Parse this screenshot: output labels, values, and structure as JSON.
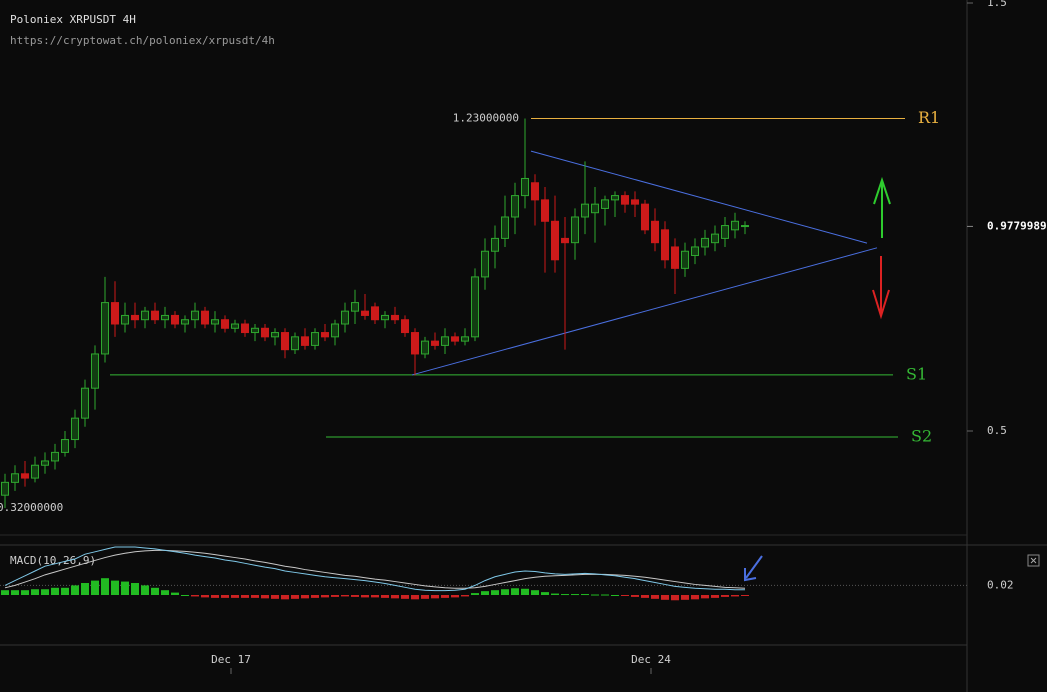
{
  "chart_data": {
    "type": "candlestick",
    "title": "Poloniex XRPUSDT 4H",
    "subtitle": "https://cryptowat.ch/poloniex/xrpusdt/4h",
    "x": [
      0,
      1,
      2,
      3,
      4,
      5,
      6,
      7,
      8,
      9,
      10,
      11,
      12,
      13,
      14,
      15,
      16,
      17,
      18,
      19,
      20,
      21,
      22,
      23,
      24,
      25,
      26,
      27,
      28,
      29,
      30,
      31,
      32,
      33,
      34,
      35,
      36,
      37,
      38,
      39,
      40,
      41,
      42,
      43,
      44,
      45,
      46,
      47,
      48,
      49,
      50,
      51,
      52,
      53,
      54,
      55,
      56,
      57,
      58,
      59,
      60,
      61,
      62,
      63,
      64,
      65,
      66,
      67,
      68,
      69,
      70,
      71,
      72,
      73,
      74
    ],
    "open": [
      0.35,
      0.38,
      0.4,
      0.39,
      0.42,
      0.43,
      0.45,
      0.48,
      0.53,
      0.6,
      0.68,
      0.8,
      0.75,
      0.77,
      0.76,
      0.78,
      0.76,
      0.77,
      0.75,
      0.76,
      0.78,
      0.75,
      0.76,
      0.74,
      0.75,
      0.73,
      0.74,
      0.72,
      0.73,
      0.69,
      0.72,
      0.7,
      0.73,
      0.72,
      0.75,
      0.78,
      0.78,
      0.79,
      0.76,
      0.77,
      0.76,
      0.73,
      0.68,
      0.71,
      0.7,
      0.72,
      0.71,
      0.72,
      0.86,
      0.92,
      0.95,
      1.0,
      1.05,
      1.08,
      1.04,
      0.99,
      0.95,
      0.94,
      1.0,
      1.01,
      1.02,
      1.04,
      1.05,
      1.04,
      1.03,
      0.99,
      0.97,
      0.93,
      0.88,
      0.91,
      0.93,
      0.94,
      0.95,
      0.97,
      0.98
    ],
    "high": [
      0.4,
      0.42,
      0.43,
      0.44,
      0.45,
      0.47,
      0.5,
      0.55,
      0.62,
      0.7,
      0.86,
      0.85,
      0.8,
      0.8,
      0.79,
      0.8,
      0.79,
      0.78,
      0.77,
      0.8,
      0.79,
      0.78,
      0.77,
      0.76,
      0.76,
      0.75,
      0.75,
      0.74,
      0.74,
      0.73,
      0.74,
      0.74,
      0.75,
      0.76,
      0.8,
      0.83,
      0.82,
      0.8,
      0.78,
      0.79,
      0.77,
      0.74,
      0.72,
      0.73,
      0.74,
      0.73,
      0.74,
      0.88,
      0.95,
      0.98,
      1.05,
      1.08,
      1.23,
      1.1,
      1.07,
      1.05,
      1.0,
      1.02,
      1.13,
      1.07,
      1.05,
      1.06,
      1.06,
      1.06,
      1.04,
      1.02,
      0.99,
      0.95,
      0.94,
      0.95,
      0.97,
      0.98,
      1.0,
      1.01,
      0.99
    ],
    "low": [
      0.32,
      0.36,
      0.37,
      0.38,
      0.4,
      0.41,
      0.44,
      0.46,
      0.51,
      0.55,
      0.66,
      0.72,
      0.73,
      0.74,
      0.74,
      0.75,
      0.74,
      0.74,
      0.73,
      0.74,
      0.74,
      0.73,
      0.73,
      0.73,
      0.72,
      0.71,
      0.71,
      0.7,
      0.67,
      0.68,
      0.69,
      0.69,
      0.71,
      0.7,
      0.73,
      0.75,
      0.76,
      0.75,
      0.74,
      0.75,
      0.72,
      0.63,
      0.67,
      0.69,
      0.68,
      0.7,
      0.7,
      0.71,
      0.83,
      0.88,
      0.93,
      0.96,
      1.02,
      0.98,
      0.87,
      0.87,
      0.69,
      0.9,
      0.96,
      0.94,
      0.98,
      1.0,
      1.01,
      1.0,
      0.96,
      0.92,
      0.88,
      0.82,
      0.86,
      0.89,
      0.91,
      0.92,
      0.93,
      0.95,
      0.96
    ],
    "close": [
      0.38,
      0.4,
      0.39,
      0.42,
      0.43,
      0.45,
      0.48,
      0.53,
      0.6,
      0.68,
      0.8,
      0.75,
      0.77,
      0.76,
      0.78,
      0.76,
      0.77,
      0.75,
      0.76,
      0.78,
      0.75,
      0.76,
      0.74,
      0.75,
      0.73,
      0.74,
      0.72,
      0.73,
      0.69,
      0.72,
      0.7,
      0.73,
      0.72,
      0.75,
      0.78,
      0.8,
      0.77,
      0.76,
      0.77,
      0.76,
      0.73,
      0.68,
      0.71,
      0.7,
      0.72,
      0.71,
      0.72,
      0.86,
      0.92,
      0.95,
      1.0,
      1.05,
      1.09,
      1.04,
      0.99,
      0.9,
      0.94,
      1.0,
      1.03,
      1.03,
      1.04,
      1.05,
      1.03,
      1.03,
      0.97,
      0.94,
      0.9,
      0.88,
      0.92,
      0.93,
      0.95,
      0.96,
      0.98,
      0.99,
      0.98
    ],
    "up_color": "#2fa82f",
    "down_color": "#cc1a1a",
    "xlim": [
      -0.5,
      96.2
    ],
    "xticks": [
      {
        "value": 22.6,
        "label": "Dec 17"
      },
      {
        "value": 64.6,
        "label": "Dec 24"
      }
    ],
    "ylim": [
      0.257,
      1.507
    ],
    "yticks": [
      1.5,
      0.5
    ],
    "last_price": 0.9779989,
    "annotations": [
      {
        "value": 1.23,
        "label": "1.23000000",
        "x": 52
      },
      {
        "value": 0.32,
        "label": "0.32000000",
        "x": 0
      }
    ],
    "levels": [
      {
        "name": "R1",
        "value": 1.23,
        "x": [
          52.6,
          90.0
        ],
        "color": "#e8b040"
      },
      {
        "name": "S1",
        "value": 0.631,
        "x": [
          10.5,
          88.8
        ],
        "color": "#35b835"
      },
      {
        "name": "S2",
        "value": 0.486,
        "x": [
          32.1,
          89.3
        ],
        "color": "#35b835"
      }
    ],
    "trendlines": [
      {
        "x": [
          52.6,
          86.2
        ],
        "y": [
          1.154,
          0.939
        ]
      },
      {
        "x": [
          40.7,
          87.2
        ],
        "y": [
          0.631,
          0.928
        ]
      }
    ],
    "trendline_color": "#4a6fe0",
    "indicator": {
      "title": "MACD(10,26,9)",
      "ylim": [
        -0.1,
        0.1
      ],
      "yticks": [
        0.02
      ],
      "histogram": [
        0.01,
        0.01,
        0.01,
        0.012,
        0.012,
        0.015,
        0.015,
        0.02,
        0.025,
        0.03,
        0.035,
        0.03,
        0.028,
        0.025,
        0.02,
        0.015,
        0.01,
        0.005,
        0,
        -0.003,
        -0.005,
        -0.006,
        -0.006,
        -0.006,
        -0.006,
        -0.006,
        -0.007,
        -0.008,
        -0.009,
        -0.008,
        -0.007,
        -0.006,
        -0.005,
        -0.004,
        -0.003,
        -0.004,
        -0.005,
        -0.005,
        -0.006,
        -0.007,
        -0.008,
        -0.009,
        -0.008,
        -0.007,
        -0.006,
        -0.005,
        -0.003,
        0.004,
        0.008,
        0.01,
        0.012,
        0.014,
        0.013,
        0.01,
        0.006,
        0.003,
        0.002,
        0.002,
        0.002,
        0.001,
        0.001,
        0,
        -0.002,
        -0.004,
        -0.006,
        -0.008,
        -0.01,
        -0.011,
        -0.01,
        -0.009,
        -0.007,
        -0.006,
        -0.004,
        -0.003,
        -0.002
      ],
      "macd": [
        0.02,
        0.03,
        0.04,
        0.05,
        0.06,
        0.065,
        0.07,
        0.075,
        0.085,
        0.09,
        0.095,
        0.1,
        0.1,
        0.1,
        0.098,
        0.096,
        0.093,
        0.09,
        0.087,
        0.083,
        0.08,
        0.077,
        0.073,
        0.07,
        0.066,
        0.062,
        0.058,
        0.055,
        0.05,
        0.047,
        0.044,
        0.041,
        0.038,
        0.036,
        0.034,
        0.032,
        0.03,
        0.027,
        0.024,
        0.02,
        0.016,
        0.012,
        0.01,
        0.009,
        0.009,
        0.01,
        0.012,
        0.02,
        0.03,
        0.038,
        0.043,
        0.048,
        0.05,
        0.049,
        0.046,
        0.044,
        0.043,
        0.044,
        0.045,
        0.044,
        0.042,
        0.04,
        0.037,
        0.034,
        0.03,
        0.026,
        0.022,
        0.018,
        0.016,
        0.014,
        0.013,
        0.012,
        0.012,
        0.011,
        0.011
      ],
      "signal": [
        0.015,
        0.02,
        0.027,
        0.034,
        0.042,
        0.048,
        0.054,
        0.06,
        0.066,
        0.072,
        0.078,
        0.083,
        0.087,
        0.09,
        0.092,
        0.093,
        0.093,
        0.092,
        0.091,
        0.089,
        0.087,
        0.084,
        0.081,
        0.078,
        0.075,
        0.071,
        0.068,
        0.064,
        0.06,
        0.057,
        0.053,
        0.05,
        0.047,
        0.044,
        0.041,
        0.039,
        0.036,
        0.033,
        0.031,
        0.028,
        0.025,
        0.022,
        0.019,
        0.017,
        0.015,
        0.014,
        0.014,
        0.015,
        0.018,
        0.022,
        0.026,
        0.03,
        0.034,
        0.037,
        0.039,
        0.04,
        0.041,
        0.042,
        0.043,
        0.043,
        0.043,
        0.042,
        0.041,
        0.039,
        0.037,
        0.034,
        0.031,
        0.028,
        0.025,
        0.022,
        0.02,
        0.018,
        0.016,
        0.015,
        0.014
      ],
      "macd_color": "#7fc8e8",
      "signal_color": "#c8c8c8",
      "up_color": "#22bb22",
      "down_color": "#cc2222"
    }
  }
}
